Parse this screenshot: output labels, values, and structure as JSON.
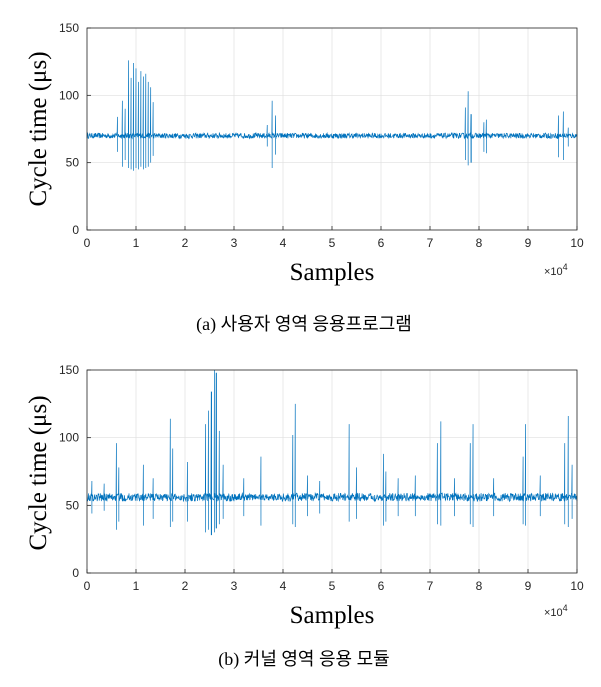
{
  "chart_data": [
    {
      "type": "line",
      "title": "",
      "caption": "(a) 사용자 영역 응용프로그램",
      "xlabel": "Samples",
      "ylabel": "Cycle time (μs)",
      "x_multiplier": "×10",
      "x_multiplier_exp": "4",
      "xlim": [
        0,
        10
      ],
      "ylim": [
        0,
        150
      ],
      "xticks": [
        "0",
        "1",
        "2",
        "3",
        "4",
        "5",
        "6",
        "7",
        "8",
        "9",
        "10"
      ],
      "yticks": [
        "0",
        "50",
        "100",
        "150"
      ],
      "grid": true,
      "color": "#0072BD",
      "baseline": 70,
      "noise": 2,
      "spikes": [
        {
          "x": 0.62,
          "high": 84,
          "low": 58
        },
        {
          "x": 0.72,
          "high": 96,
          "low": 47
        },
        {
          "x": 0.78,
          "high": 90,
          "low": 52
        },
        {
          "x": 0.85,
          "high": 126,
          "low": 46
        },
        {
          "x": 0.9,
          "high": 113,
          "low": 45
        },
        {
          "x": 0.95,
          "high": 124,
          "low": 44
        },
        {
          "x": 1.0,
          "high": 120,
          "low": 46
        },
        {
          "x": 1.05,
          "high": 110,
          "low": 45
        },
        {
          "x": 1.1,
          "high": 118,
          "low": 47
        },
        {
          "x": 1.15,
          "high": 114,
          "low": 45
        },
        {
          "x": 1.2,
          "high": 116,
          "low": 46
        },
        {
          "x": 1.25,
          "high": 110,
          "low": 47
        },
        {
          "x": 1.3,
          "high": 106,
          "low": 50
        },
        {
          "x": 1.35,
          "high": 95,
          "low": 55
        },
        {
          "x": 3.68,
          "high": 78,
          "low": 62
        },
        {
          "x": 3.78,
          "high": 96,
          "low": 46
        },
        {
          "x": 3.85,
          "high": 85,
          "low": 56
        },
        {
          "x": 7.72,
          "high": 91,
          "low": 52
        },
        {
          "x": 7.78,
          "high": 103,
          "low": 48
        },
        {
          "x": 7.84,
          "high": 86,
          "low": 50
        },
        {
          "x": 8.1,
          "high": 80,
          "low": 58
        },
        {
          "x": 8.15,
          "high": 82,
          "low": 57
        },
        {
          "x": 9.62,
          "high": 85,
          "low": 54
        },
        {
          "x": 9.72,
          "high": 88,
          "low": 52
        },
        {
          "x": 9.82,
          "high": 76,
          "low": 62
        }
      ]
    },
    {
      "type": "line",
      "title": "",
      "caption": "(b) 커널 영역 응용 모듈",
      "xlabel": "Samples",
      "ylabel": "Cycle time (μs)",
      "x_multiplier": "×10",
      "x_multiplier_exp": "4",
      "xlim": [
        0,
        10
      ],
      "ylim": [
        0,
        150
      ],
      "xticks": [
        "0",
        "1",
        "2",
        "3",
        "4",
        "5",
        "6",
        "7",
        "8",
        "9",
        "10"
      ],
      "yticks": [
        "0",
        "50",
        "100",
        "150"
      ],
      "grid": true,
      "color": "#0072BD",
      "baseline": 56,
      "noise": 3,
      "spikes": [
        {
          "x": 0.1,
          "high": 68,
          "low": 44
        },
        {
          "x": 0.35,
          "high": 66,
          "low": 46
        },
        {
          "x": 0.6,
          "high": 96,
          "low": 32
        },
        {
          "x": 0.65,
          "high": 78,
          "low": 38
        },
        {
          "x": 1.15,
          "high": 80,
          "low": 35
        },
        {
          "x": 1.35,
          "high": 70,
          "low": 40
        },
        {
          "x": 1.7,
          "high": 114,
          "low": 34
        },
        {
          "x": 1.75,
          "high": 92,
          "low": 38
        },
        {
          "x": 2.05,
          "high": 82,
          "low": 38
        },
        {
          "x": 2.42,
          "high": 110,
          "low": 30
        },
        {
          "x": 2.48,
          "high": 120,
          "low": 32
        },
        {
          "x": 2.54,
          "high": 134,
          "low": 28
        },
        {
          "x": 2.6,
          "high": 150,
          "low": 30
        },
        {
          "x": 2.64,
          "high": 148,
          "low": 33
        },
        {
          "x": 2.7,
          "high": 105,
          "low": 36
        },
        {
          "x": 2.78,
          "high": 80,
          "low": 40
        },
        {
          "x": 3.2,
          "high": 70,
          "low": 42
        },
        {
          "x": 3.55,
          "high": 86,
          "low": 35
        },
        {
          "x": 4.2,
          "high": 102,
          "low": 36
        },
        {
          "x": 4.25,
          "high": 125,
          "low": 34
        },
        {
          "x": 4.5,
          "high": 72,
          "low": 42
        },
        {
          "x": 4.75,
          "high": 68,
          "low": 44
        },
        {
          "x": 5.35,
          "high": 110,
          "low": 38
        },
        {
          "x": 5.5,
          "high": 78,
          "low": 40
        },
        {
          "x": 6.05,
          "high": 88,
          "low": 35
        },
        {
          "x": 6.1,
          "high": 75,
          "low": 38
        },
        {
          "x": 6.35,
          "high": 70,
          "low": 42
        },
        {
          "x": 6.7,
          "high": 72,
          "low": 42
        },
        {
          "x": 7.15,
          "high": 96,
          "low": 36
        },
        {
          "x": 7.22,
          "high": 112,
          "low": 35
        },
        {
          "x": 7.5,
          "high": 70,
          "low": 42
        },
        {
          "x": 7.82,
          "high": 96,
          "low": 36
        },
        {
          "x": 7.88,
          "high": 110,
          "low": 34
        },
        {
          "x": 8.3,
          "high": 70,
          "low": 42
        },
        {
          "x": 8.9,
          "high": 86,
          "low": 36
        },
        {
          "x": 8.95,
          "high": 110,
          "low": 35
        },
        {
          "x": 9.25,
          "high": 72,
          "low": 42
        },
        {
          "x": 9.75,
          "high": 96,
          "low": 36
        },
        {
          "x": 9.82,
          "high": 116,
          "low": 34
        },
        {
          "x": 9.9,
          "high": 80,
          "low": 40
        }
      ]
    }
  ]
}
